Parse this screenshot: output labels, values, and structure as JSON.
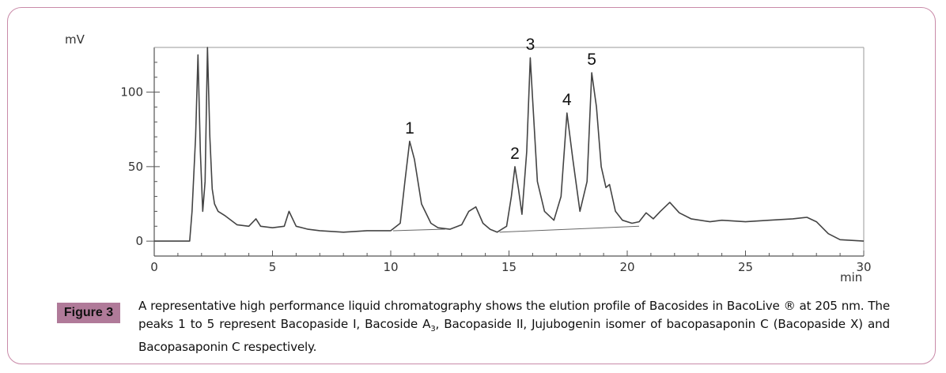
{
  "figure": {
    "label": "Figure 3",
    "caption_part1": "A representative high performance liquid chromatography shows the elution profile of Bacosides in BacoLive ® at 205 nm. The peaks 1 to 5 represent Bacopaside I, Bacoside A",
    "caption_sub": "3",
    "caption_part2": ", Bacopaside II, Jujubogenin isomer of bacopasaponin C (Bacopaside X) and Bacopasaponin C respectively."
  },
  "colors": {
    "frame": "#c98aa8",
    "label_bg": "#b07a99",
    "trace": "#444444"
  },
  "chart_data": {
    "type": "line",
    "title": "",
    "ylabel": "mV",
    "xlabel": "min",
    "xlim": [
      0,
      30
    ],
    "ylim": [
      -10,
      130
    ],
    "x_ticks": [
      0,
      5,
      10,
      15,
      20,
      25,
      30
    ],
    "y_ticks": [
      0,
      50,
      100
    ],
    "grid": false,
    "series": [
      {
        "x": [
          0,
          1.5,
          1.6,
          1.75,
          1.85,
          1.95,
          2.05,
          2.15,
          2.25,
          2.35,
          2.45,
          2.55,
          2.7,
          3.0,
          3.5,
          4.0,
          4.3,
          4.5,
          5.0,
          5.5,
          5.7,
          6.0,
          6.5,
          7.0,
          8.0,
          9.0,
          10.0,
          10.4,
          10.6,
          10.8,
          11.0,
          11.3,
          11.7,
          12.0,
          12.5,
          13.0,
          13.3,
          13.6,
          13.9,
          14.2,
          14.5,
          14.9,
          15.1,
          15.25,
          15.4,
          15.55,
          15.75,
          15.9,
          16.0,
          16.2,
          16.5,
          16.9,
          17.2,
          17.45,
          17.7,
          18.0,
          18.3,
          18.5,
          18.7,
          18.9,
          19.1,
          19.25,
          19.5,
          19.8,
          20.2,
          20.5,
          20.8,
          21.1,
          21.4,
          21.8,
          22.2,
          22.7,
          23.5,
          24.0,
          25.0,
          26.0,
          27.0,
          27.6,
          28.0,
          28.5,
          29.0,
          30.0
        ],
        "y": [
          0,
          0,
          20,
          70,
          125,
          60,
          20,
          40,
          130,
          70,
          35,
          25,
          20,
          17,
          11,
          10,
          15,
          10,
          9,
          10,
          20,
          10,
          8,
          7,
          6,
          7,
          7,
          12,
          40,
          67,
          55,
          25,
          12,
          9,
          8,
          11,
          20,
          23,
          12,
          8,
          6,
          10,
          30,
          50,
          35,
          18,
          60,
          123,
          95,
          40,
          20,
          14,
          30,
          86,
          55,
          20,
          40,
          113,
          90,
          50,
          36,
          38,
          20,
          14,
          12,
          13,
          19,
          15,
          20,
          26,
          19,
          15,
          13,
          14,
          13,
          14,
          15,
          16,
          13,
          5,
          1,
          0
        ]
      }
    ],
    "peak_labels": [
      {
        "label": "1",
        "x": 10.8,
        "y": 67
      },
      {
        "label": "2",
        "x": 15.25,
        "y": 50
      },
      {
        "label": "3",
        "x": 15.9,
        "y": 123
      },
      {
        "label": "4",
        "x": 17.45,
        "y": 86
      },
      {
        "label": "5",
        "x": 18.5,
        "y": 113
      }
    ],
    "integration_baselines": [
      {
        "x": [
          10.1,
          12.3
        ],
        "y": [
          7,
          8
        ]
      },
      {
        "x": [
          14.6,
          20.5
        ],
        "y": [
          6,
          10
        ]
      }
    ]
  }
}
